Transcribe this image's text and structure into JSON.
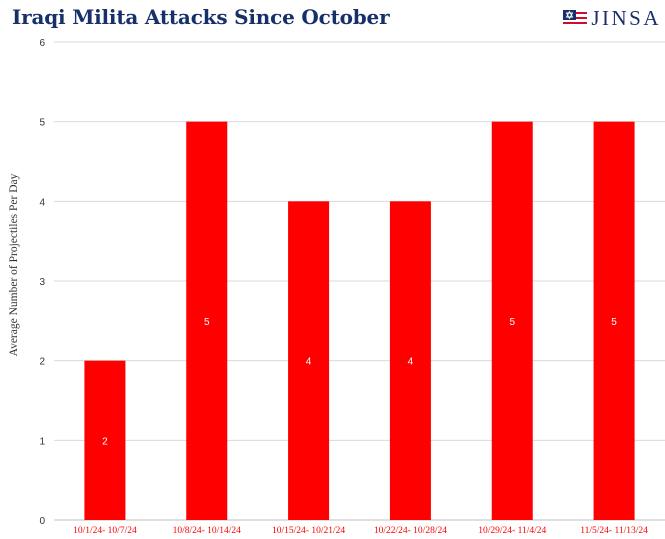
{
  "title": "Iraqi Milita Attacks Since October",
  "logo": {
    "text": "JINSA",
    "icon": "star-of-david-flag-icon"
  },
  "colors": {
    "bar": "#ff0000",
    "title": "#17306a",
    "grid": "#d9d9d9",
    "tick_label": "#ff0000"
  },
  "chart_data": {
    "type": "bar",
    "title": "Iraqi Milita Attacks Since October",
    "xlabel": "",
    "ylabel": "Average Number of Projectiles Per Day",
    "categories": [
      "10/1/24- 10/7/24",
      "10/8/24- 10/14/24",
      "10/15/24- 10/21/24",
      "10/22/24- 10/28/24",
      "10/29/24- 11/4/24",
      "11/5/24- 11/13/24"
    ],
    "values": [
      2,
      5,
      4,
      4,
      5,
      5
    ],
    "data_labels": [
      "2",
      "5",
      "4",
      "4",
      "5",
      "5"
    ],
    "ylim": [
      0,
      6
    ],
    "yticks": [
      "0",
      "1",
      "2",
      "3",
      "4",
      "5",
      "6"
    ],
    "grid": true,
    "legend": "none"
  }
}
